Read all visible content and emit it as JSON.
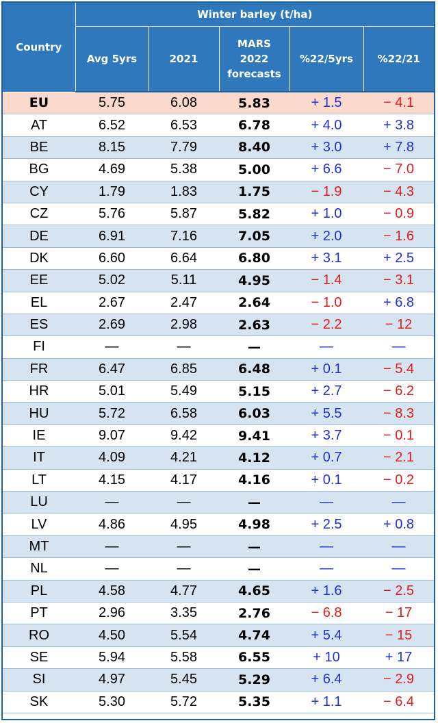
{
  "header": {
    "country": "Country",
    "group_title": "Winter barley (t/ha)",
    "col_avg": "Avg 5yrs",
    "col_2021": "2021",
    "col_mars_line1": "MARS",
    "col_mars_line2": "2022",
    "col_mars_line3": "forecasts",
    "col_pct5": "%22/5yrs",
    "col_pct21": "%22/21"
  },
  "colors": {
    "header_bg": "#2f78bc",
    "row_alt": "#d6e4f1",
    "eu_row": "#fbd9cc",
    "positive": "#1f2fd6",
    "negative": "#e21b1b"
  },
  "rows": [
    {
      "country": "EU",
      "avg": "5.75",
      "y2021": "6.08",
      "forecast": "5.83",
      "pct5": "+ 1.5",
      "pct21": "− 4.1"
    },
    {
      "country": "AT",
      "avg": "6.52",
      "y2021": "6.53",
      "forecast": "6.78",
      "pct5": "+ 4.0",
      "pct21": "+ 3.8"
    },
    {
      "country": "BE",
      "avg": "8.15",
      "y2021": "7.79",
      "forecast": "8.40",
      "pct5": "+ 3.0",
      "pct21": "+ 7.8"
    },
    {
      "country": "BG",
      "avg": "4.69",
      "y2021": "5.38",
      "forecast": "5.00",
      "pct5": "+ 6.6",
      "pct21": "− 7.0"
    },
    {
      "country": "CY",
      "avg": "1.79",
      "y2021": "1.83",
      "forecast": "1.75",
      "pct5": "− 1.9",
      "pct21": "− 4.3"
    },
    {
      "country": "CZ",
      "avg": "5.76",
      "y2021": "5.87",
      "forecast": "5.82",
      "pct5": "+ 1.0",
      "pct21": "− 0.9"
    },
    {
      "country": "DE",
      "avg": "6.91",
      "y2021": "7.16",
      "forecast": "7.05",
      "pct5": "+ 2.0",
      "pct21": "− 1.6"
    },
    {
      "country": "DK",
      "avg": "6.60",
      "y2021": "6.64",
      "forecast": "6.80",
      "pct5": "+ 3.1",
      "pct21": "+ 2.5"
    },
    {
      "country": "EE",
      "avg": "5.02",
      "y2021": "5.11",
      "forecast": "4.95",
      "pct5": "− 1.4",
      "pct21": "− 3.1"
    },
    {
      "country": "EL",
      "avg": "2.67",
      "y2021": "2.47",
      "forecast": "2.64",
      "pct5": "− 1.0",
      "pct21": "+ 6.8"
    },
    {
      "country": "ES",
      "avg": "2.69",
      "y2021": "2.98",
      "forecast": "2.63",
      "pct5": "− 2.2",
      "pct21": "− 12"
    },
    {
      "country": "FI",
      "avg": "—",
      "y2021": "—",
      "forecast": "—",
      "pct5": "—",
      "pct21": "—"
    },
    {
      "country": "FR",
      "avg": "6.47",
      "y2021": "6.85",
      "forecast": "6.48",
      "pct5": "+ 0.1",
      "pct21": "− 5.4"
    },
    {
      "country": "HR",
      "avg": "5.01",
      "y2021": "5.49",
      "forecast": "5.15",
      "pct5": "+ 2.7",
      "pct21": "− 6.2"
    },
    {
      "country": "HU",
      "avg": "5.72",
      "y2021": "6.58",
      "forecast": "6.03",
      "pct5": "+ 5.5",
      "pct21": "− 8.3"
    },
    {
      "country": "IE",
      "avg": "9.07",
      "y2021": "9.42",
      "forecast": "9.41",
      "pct5": "+ 3.7",
      "pct21": "− 0.1"
    },
    {
      "country": "IT",
      "avg": "4.09",
      "y2021": "4.21",
      "forecast": "4.12",
      "pct5": "+ 0.7",
      "pct21": "− 2.1"
    },
    {
      "country": "LT",
      "avg": "4.15",
      "y2021": "4.17",
      "forecast": "4.16",
      "pct5": "+ 0.1",
      "pct21": "− 0.2"
    },
    {
      "country": "LU",
      "avg": "—",
      "y2021": "—",
      "forecast": "—",
      "pct5": "—",
      "pct21": "—"
    },
    {
      "country": "LV",
      "avg": "4.86",
      "y2021": "4.95",
      "forecast": "4.98",
      "pct5": "+ 2.5",
      "pct21": "+ 0.8"
    },
    {
      "country": "MT",
      "avg": "—",
      "y2021": "—",
      "forecast": "—",
      "pct5": "—",
      "pct21": "—"
    },
    {
      "country": "NL",
      "avg": "—",
      "y2021": "—",
      "forecast": "—",
      "pct5": "—",
      "pct21": "—"
    },
    {
      "country": "PL",
      "avg": "4.58",
      "y2021": "4.77",
      "forecast": "4.65",
      "pct5": "+ 1.6",
      "pct21": "− 2.5"
    },
    {
      "country": "PT",
      "avg": "2.96",
      "y2021": "3.35",
      "forecast": "2.76",
      "pct5": "− 6.8",
      "pct21": "− 17"
    },
    {
      "country": "RO",
      "avg": "4.50",
      "y2021": "5.54",
      "forecast": "4.74",
      "pct5": "+ 5.4",
      "pct21": "− 15"
    },
    {
      "country": "SE",
      "avg": "5.94",
      "y2021": "5.58",
      "forecast": "6.55",
      "pct5": "+ 10",
      "pct21": "+ 17"
    },
    {
      "country": "SI",
      "avg": "4.97",
      "y2021": "5.45",
      "forecast": "5.29",
      "pct5": "+ 6.4",
      "pct21": "− 2.9"
    },
    {
      "country": "SK",
      "avg": "5.30",
      "y2021": "5.72",
      "forecast": "5.35",
      "pct5": "+ 1.1",
      "pct21": "− 6.4"
    }
  ]
}
